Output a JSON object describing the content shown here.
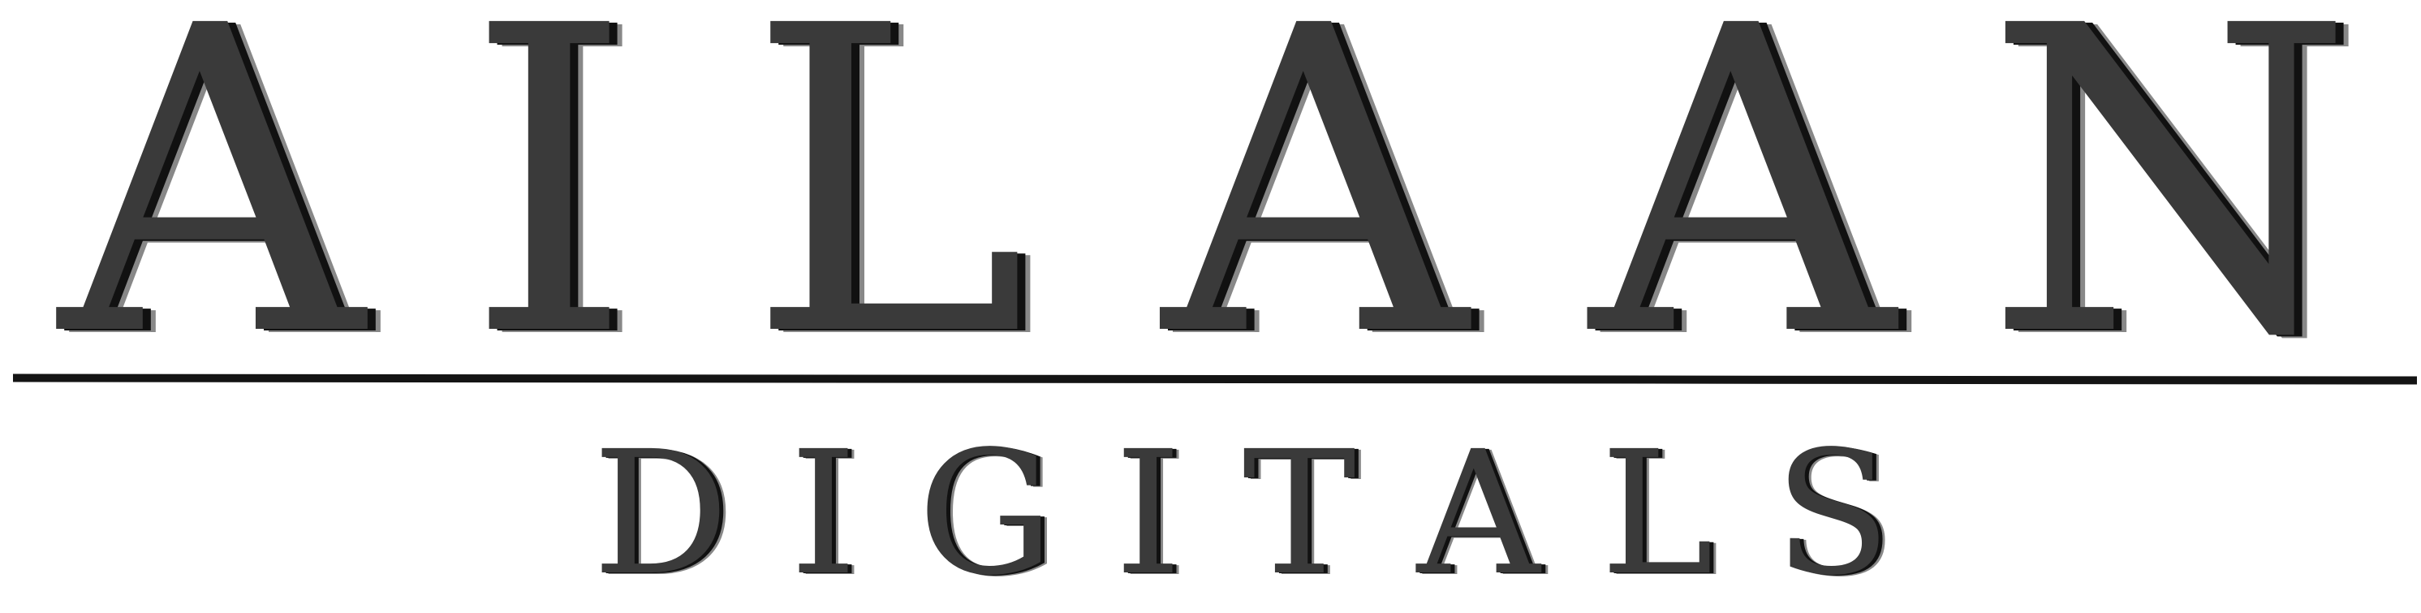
{
  "logo": {
    "primary_letters": [
      "A",
      "I",
      "L",
      "A",
      "A",
      "N"
    ],
    "secondary_letters": [
      "D",
      "I",
      "G",
      "I",
      "T",
      "A",
      "L",
      "S"
    ],
    "colors": {
      "text": "#3a3a3a",
      "shadow_dark": "#111111",
      "shadow_light": "#888888",
      "rule": "#141414",
      "background": "#ffffff"
    }
  }
}
